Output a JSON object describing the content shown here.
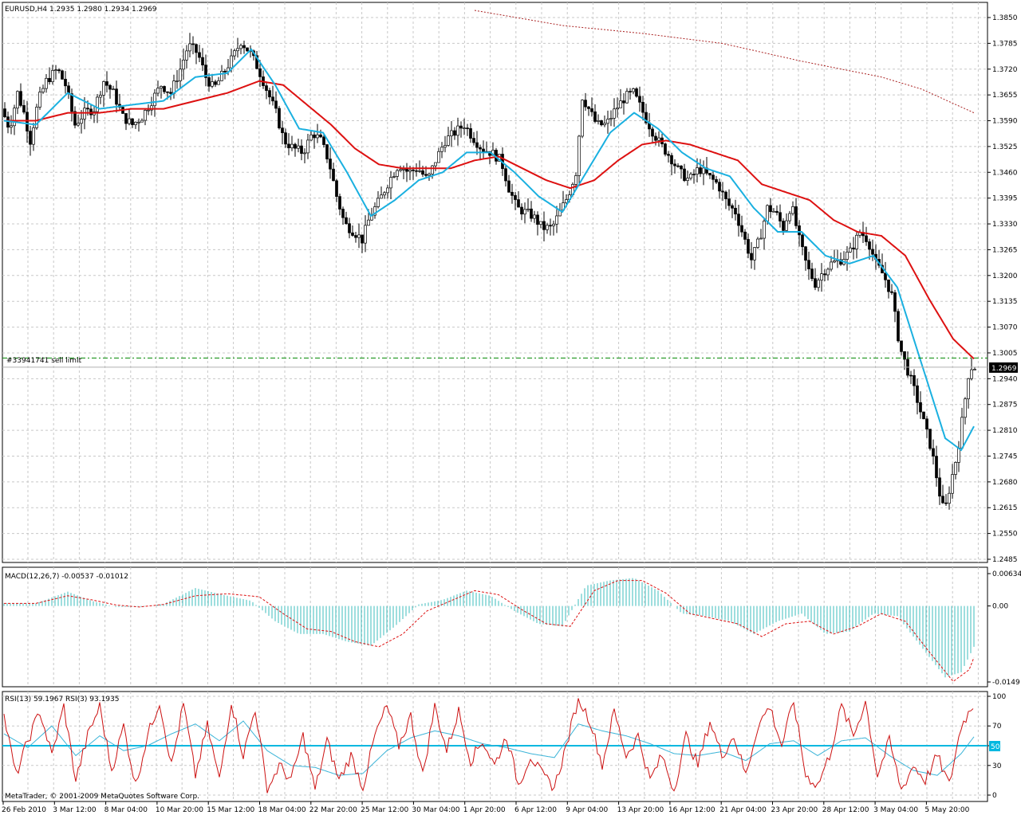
{
  "main": {
    "header": "EURUSD,H4  1.2935 1.2980 1.2934 1.2969",
    "order_label": "#33941741 sell limit",
    "order_price": 1.2992,
    "current_price": 1.2969,
    "current_price_label": "1.2969",
    "price_ticks": [
      "1.3850",
      "1.3785",
      "1.3720",
      "1.3655",
      "1.3590",
      "1.3525",
      "1.3460",
      "1.3395",
      "1.3330",
      "1.3265",
      "1.3200",
      "1.3135",
      "1.3070",
      "1.3005",
      "1.2940",
      "1.2875",
      "1.2810",
      "1.2745",
      "1.2680",
      "1.2615",
      "1.2550",
      "1.2485"
    ]
  },
  "macd": {
    "header": "MACD(12,26,7) -0.00537 -0.01012",
    "ticks": [
      "0.00634",
      "0.00",
      "-0.0149"
    ]
  },
  "rsi": {
    "header": "RSI(13) 59.1967  RSI(3) 93.1935",
    "ticks": [
      "100",
      "70",
      "50",
      "30",
      "0"
    ],
    "level_label": "50"
  },
  "copyright": "MetaTrader, © 2001-2009 MetaQuotes Software Corp.",
  "time_labels": [
    "26 Feb 2010",
    "3 Mar 12:00",
    "8 Mar 04:00",
    "10 Mar 20:00",
    "15 Mar 12:00",
    "18 Mar 04:00",
    "22 Mar 20:00",
    "25 Mar 12:00",
    "30 Mar 04:00",
    "1 Apr 20:00",
    "6 Apr 12:00",
    "9 Apr 04:00",
    "13 Apr 20:00",
    "16 Apr 12:00",
    "21 Apr 04:00",
    "23 Apr 20:00",
    "28 Apr 12:00",
    "3 May 04:00",
    "5 May 20:00"
  ],
  "colors": {
    "ma_fast": "#1ab0e0",
    "ma_slow": "#dd1111",
    "ma_long": "#aa2222",
    "macd_hist": "#3cbcbc",
    "macd_signal": "#dd1111",
    "rsi13": "#3cb4d8",
    "rsi3": "#cc1111",
    "rsi_level": "#00b8e0",
    "candle": "#000000",
    "order_line": "#008800",
    "grid": "#c8c8c8"
  },
  "chart_data": {
    "type": "candlestick",
    "symbol": "EURUSD",
    "timeframe": "H4",
    "price_range": [
      1.2485,
      1.385
    ],
    "price_path": [
      [
        0,
        1.362
      ],
      [
        10,
        1.357
      ],
      [
        20,
        1.366
      ],
      [
        28,
        1.361
      ],
      [
        36,
        1.354
      ],
      [
        46,
        1.364
      ],
      [
        56,
        1.369
      ],
      [
        70,
        1.372
      ],
      [
        80,
        1.368
      ],
      [
        92,
        1.358
      ],
      [
        104,
        1.361
      ],
      [
        116,
        1.362
      ],
      [
        128,
        1.369
      ],
      [
        140,
        1.366
      ],
      [
        152,
        1.36
      ],
      [
        164,
        1.358
      ],
      [
        176,
        1.36
      ],
      [
        188,
        1.364
      ],
      [
        200,
        1.368
      ],
      [
        212,
        1.366
      ],
      [
        224,
        1.372
      ],
      [
        234,
        1.378
      ],
      [
        246,
        1.376
      ],
      [
        256,
        1.37
      ],
      [
        266,
        1.367
      ],
      [
        278,
        1.371
      ],
      [
        290,
        1.375
      ],
      [
        300,
        1.379
      ],
      [
        312,
        1.376
      ],
      [
        322,
        1.372
      ],
      [
        334,
        1.366
      ],
      [
        344,
        1.361
      ],
      [
        354,
        1.354
      ],
      [
        366,
        1.352
      ],
      [
        378,
        1.351
      ],
      [
        390,
        1.356
      ],
      [
        400,
        1.354
      ],
      [
        410,
        1.349
      ],
      [
        420,
        1.34
      ],
      [
        430,
        1.333
      ],
      [
        442,
        1.331
      ],
      [
        452,
        1.329
      ],
      [
        462,
        1.335
      ],
      [
        474,
        1.339
      ],
      [
        486,
        1.344
      ],
      [
        498,
        1.348
      ],
      [
        510,
        1.346
      ],
      [
        522,
        1.347
      ],
      [
        534,
        1.344
      ],
      [
        544,
        1.349
      ],
      [
        556,
        1.354
      ],
      [
        568,
        1.356
      ],
      [
        580,
        1.358
      ],
      [
        590,
        1.355
      ],
      [
        602,
        1.352
      ],
      [
        614,
        1.351
      ],
      [
        626,
        1.349
      ],
      [
        636,
        1.342
      ],
      [
        646,
        1.337
      ],
      [
        656,
        1.336
      ],
      [
        666,
        1.335
      ],
      [
        678,
        1.332
      ],
      [
        690,
        1.332
      ],
      [
        700,
        1.336
      ],
      [
        710,
        1.34
      ],
      [
        720,
        1.346
      ],
      [
        728,
        1.365
      ],
      [
        736,
        1.362
      ],
      [
        746,
        1.358
      ],
      [
        758,
        1.358
      ],
      [
        770,
        1.362
      ],
      [
        782,
        1.365
      ],
      [
        792,
        1.366
      ],
      [
        802,
        1.362
      ],
      [
        814,
        1.357
      ],
      [
        826,
        1.353
      ],
      [
        838,
        1.35
      ],
      [
        850,
        1.346
      ],
      [
        862,
        1.344
      ],
      [
        874,
        1.347
      ],
      [
        886,
        1.345
      ],
      [
        898,
        1.343
      ],
      [
        910,
        1.338
      ],
      [
        920,
        1.336
      ],
      [
        930,
        1.33
      ],
      [
        940,
        1.324
      ],
      [
        950,
        1.329
      ],
      [
        960,
        1.337
      ],
      [
        970,
        1.336
      ],
      [
        980,
        1.332
      ],
      [
        990,
        1.338
      ],
      [
        1000,
        1.329
      ],
      [
        1010,
        1.322
      ],
      [
        1020,
        1.318
      ],
      [
        1030,
        1.321
      ],
      [
        1040,
        1.323
      ],
      [
        1052,
        1.324
      ],
      [
        1064,
        1.326
      ],
      [
        1076,
        1.331
      ],
      [
        1086,
        1.329
      ],
      [
        1096,
        1.323
      ],
      [
        1106,
        1.32
      ],
      [
        1116,
        1.315
      ],
      [
        1126,
        1.302
      ],
      [
        1136,
        1.296
      ],
      [
        1146,
        1.29
      ],
      [
        1156,
        1.283
      ],
      [
        1166,
        1.276
      ],
      [
        1176,
        1.265
      ],
      [
        1182,
        1.26
      ],
      [
        1190,
        1.268
      ],
      [
        1198,
        1.275
      ],
      [
        1206,
        1.286
      ],
      [
        1212,
        1.295
      ],
      [
        1216,
        1.2969
      ]
    ],
    "ma_fast_path": [
      [
        0,
        1.359
      ],
      [
        40,
        1.358
      ],
      [
        80,
        1.366
      ],
      [
        120,
        1.362
      ],
      [
        160,
        1.363
      ],
      [
        200,
        1.364
      ],
      [
        240,
        1.37
      ],
      [
        280,
        1.371
      ],
      [
        310,
        1.377
      ],
      [
        340,
        1.368
      ],
      [
        370,
        1.357
      ],
      [
        400,
        1.356
      ],
      [
        430,
        1.346
      ],
      [
        460,
        1.335
      ],
      [
        490,
        1.339
      ],
      [
        520,
        1.344
      ],
      [
        550,
        1.346
      ],
      [
        580,
        1.351
      ],
      [
        610,
        1.351
      ],
      [
        640,
        1.346
      ],
      [
        670,
        1.34
      ],
      [
        700,
        1.336
      ],
      [
        730,
        1.346
      ],
      [
        760,
        1.356
      ],
      [
        790,
        1.361
      ],
      [
        820,
        1.357
      ],
      [
        850,
        1.351
      ],
      [
        880,
        1.347
      ],
      [
        910,
        1.345
      ],
      [
        940,
        1.337
      ],
      [
        970,
        1.331
      ],
      [
        1000,
        1.331
      ],
      [
        1030,
        1.325
      ],
      [
        1060,
        1.323
      ],
      [
        1090,
        1.325
      ],
      [
        1120,
        1.317
      ],
      [
        1150,
        1.298
      ],
      [
        1180,
        1.279
      ],
      [
        1200,
        1.276
      ],
      [
        1216,
        1.282
      ]
    ],
    "ma_slow_path": [
      [
        0,
        1.359
      ],
      [
        40,
        1.359
      ],
      [
        80,
        1.361
      ],
      [
        120,
        1.361
      ],
      [
        160,
        1.362
      ],
      [
        200,
        1.362
      ],
      [
        240,
        1.364
      ],
      [
        280,
        1.366
      ],
      [
        320,
        1.369
      ],
      [
        350,
        1.368
      ],
      [
        380,
        1.363
      ],
      [
        410,
        1.358
      ],
      [
        440,
        1.352
      ],
      [
        470,
        1.348
      ],
      [
        500,
        1.347
      ],
      [
        530,
        1.347
      ],
      [
        560,
        1.347
      ],
      [
        590,
        1.349
      ],
      [
        620,
        1.35
      ],
      [
        650,
        1.347
      ],
      [
        680,
        1.344
      ],
      [
        710,
        1.342
      ],
      [
        740,
        1.344
      ],
      [
        770,
        1.349
      ],
      [
        800,
        1.353
      ],
      [
        830,
        1.354
      ],
      [
        860,
        1.353
      ],
      [
        890,
        1.351
      ],
      [
        920,
        1.349
      ],
      [
        950,
        1.343
      ],
      [
        980,
        1.341
      ],
      [
        1010,
        1.339
      ],
      [
        1040,
        1.334
      ],
      [
        1070,
        1.331
      ],
      [
        1100,
        1.33
      ],
      [
        1130,
        1.325
      ],
      [
        1160,
        1.314
      ],
      [
        1190,
        1.304
      ],
      [
        1216,
        1.299
      ]
    ],
    "ma_long_path": [
      [
        590,
        1.3868
      ],
      [
        700,
        1.383
      ],
      [
        800,
        1.381
      ],
      [
        900,
        1.3785
      ],
      [
        1000,
        1.374
      ],
      [
        1100,
        1.37
      ],
      [
        1150,
        1.367
      ],
      [
        1216,
        1.361
      ]
    ],
    "macd_range": [
      -0.0149,
      0.00634
    ],
    "macd_hist_path": [
      [
        0,
        0.0005
      ],
      [
        40,
        0.0005
      ],
      [
        80,
        0.0028
      ],
      [
        110,
        0.001
      ],
      [
        140,
        -0.0002
      ],
      [
        170,
        -0.0002
      ],
      [
        200,
        0.0004
      ],
      [
        240,
        0.0035
      ],
      [
        280,
        0.002
      ],
      [
        310,
        0.001
      ],
      [
        340,
        -0.003
      ],
      [
        370,
        -0.0055
      ],
      [
        400,
        -0.0055
      ],
      [
        430,
        -0.007
      ],
      [
        460,
        -0.0078
      ],
      [
        490,
        -0.004
      ],
      [
        520,
        0.0003
      ],
      [
        550,
        0.0012
      ],
      [
        580,
        0.003
      ],
      [
        610,
        0.002
      ],
      [
        640,
        -0.001
      ],
      [
        670,
        -0.0035
      ],
      [
        700,
        -0.004
      ],
      [
        730,
        0.004
      ],
      [
        760,
        0.005
      ],
      [
        790,
        0.0055
      ],
      [
        820,
        0.003
      ],
      [
        850,
        -0.0015
      ],
      [
        880,
        -0.002
      ],
      [
        910,
        -0.003
      ],
      [
        940,
        -0.0055
      ],
      [
        970,
        -0.003
      ],
      [
        1000,
        -0.0015
      ],
      [
        1030,
        -0.0055
      ],
      [
        1060,
        -0.005
      ],
      [
        1090,
        -0.0015
      ],
      [
        1120,
        -0.002
      ],
      [
        1150,
        -0.008
      ],
      [
        1180,
        -0.014
      ],
      [
        1200,
        -0.013
      ],
      [
        1216,
        -0.008
      ]
    ],
    "macd_signal_path": [
      [
        0,
        0.0005
      ],
      [
        40,
        0.0005
      ],
      [
        80,
        0.002
      ],
      [
        110,
        0.0012
      ],
      [
        140,
        0.0002
      ],
      [
        170,
        -0.0002
      ],
      [
        200,
        0.0003
      ],
      [
        240,
        0.002
      ],
      [
        280,
        0.0024
      ],
      [
        320,
        0.0018
      ],
      [
        350,
        -0.0015
      ],
      [
        380,
        -0.0045
      ],
      [
        410,
        -0.005
      ],
      [
        440,
        -0.007
      ],
      [
        470,
        -0.008
      ],
      [
        500,
        -0.0055
      ],
      [
        530,
        -0.001
      ],
      [
        560,
        0.001
      ],
      [
        590,
        0.003
      ],
      [
        620,
        0.0022
      ],
      [
        650,
        -0.0008
      ],
      [
        680,
        -0.0035
      ],
      [
        710,
        -0.004
      ],
      [
        740,
        0.003
      ],
      [
        770,
        0.005
      ],
      [
        800,
        0.005
      ],
      [
        830,
        0.0025
      ],
      [
        860,
        -0.0015
      ],
      [
        890,
        -0.0025
      ],
      [
        920,
        -0.0035
      ],
      [
        950,
        -0.006
      ],
      [
        980,
        -0.0035
      ],
      [
        1010,
        -0.003
      ],
      [
        1040,
        -0.0055
      ],
      [
        1070,
        -0.004
      ],
      [
        1100,
        -0.0015
      ],
      [
        1130,
        -0.003
      ],
      [
        1160,
        -0.009
      ],
      [
        1190,
        -0.0148
      ],
      [
        1210,
        -0.0125
      ],
      [
        1216,
        -0.0101
      ]
    ],
    "rsi_range": [
      0,
      100
    ],
    "rsi13_path": [
      [
        0,
        62
      ],
      [
        30,
        48
      ],
      [
        60,
        70
      ],
      [
        90,
        40
      ],
      [
        120,
        60
      ],
      [
        150,
        45
      ],
      [
        180,
        50
      ],
      [
        210,
        62
      ],
      [
        240,
        72
      ],
      [
        270,
        55
      ],
      [
        300,
        75
      ],
      [
        330,
        45
      ],
      [
        360,
        30
      ],
      [
        390,
        28
      ],
      [
        420,
        20
      ],
      [
        450,
        22
      ],
      [
        480,
        45
      ],
      [
        510,
        58
      ],
      [
        540,
        65
      ],
      [
        570,
        60
      ],
      [
        600,
        52
      ],
      [
        630,
        48
      ],
      [
        660,
        42
      ],
      [
        690,
        38
      ],
      [
        720,
        72
      ],
      [
        750,
        65
      ],
      [
        780,
        60
      ],
      [
        810,
        52
      ],
      [
        840,
        42
      ],
      [
        870,
        40
      ],
      [
        900,
        44
      ],
      [
        930,
        35
      ],
      [
        960,
        52
      ],
      [
        990,
        55
      ],
      [
        1020,
        40
      ],
      [
        1050,
        55
      ],
      [
        1080,
        58
      ],
      [
        1110,
        40
      ],
      [
        1140,
        25
      ],
      [
        1170,
        20
      ],
      [
        1200,
        42
      ],
      [
        1216,
        59
      ]
    ],
    "rsi3_path": [
      [
        0,
        80
      ],
      [
        15,
        20
      ],
      [
        30,
        55
      ],
      [
        45,
        85
      ],
      [
        60,
        40
      ],
      [
        75,
        90
      ],
      [
        90,
        15
      ],
      [
        105,
        60
      ],
      [
        120,
        90
      ],
      [
        135,
        25
      ],
      [
        150,
        70
      ],
      [
        165,
        10
      ],
      [
        180,
        60
      ],
      [
        195,
        95
      ],
      [
        210,
        30
      ],
      [
        225,
        92
      ],
      [
        240,
        20
      ],
      [
        255,
        70
      ],
      [
        270,
        15
      ],
      [
        285,
        95
      ],
      [
        300,
        40
      ],
      [
        315,
        88
      ],
      [
        330,
        5
      ],
      [
        345,
        30
      ],
      [
        360,
        15
      ],
      [
        375,
        60
      ],
      [
        390,
        5
      ],
      [
        405,
        55
      ],
      [
        420,
        15
      ],
      [
        435,
        40
      ],
      [
        450,
        8
      ],
      [
        465,
        60
      ],
      [
        480,
        90
      ],
      [
        495,
        50
      ],
      [
        510,
        80
      ],
      [
        525,
        20
      ],
      [
        540,
        90
      ],
      [
        555,
        45
      ],
      [
        570,
        85
      ],
      [
        585,
        35
      ],
      [
        600,
        55
      ],
      [
        615,
        30
      ],
      [
        630,
        60
      ],
      [
        645,
        10
      ],
      [
        660,
        40
      ],
      [
        675,
        20
      ],
      [
        690,
        8
      ],
      [
        705,
        50
      ],
      [
        720,
        98
      ],
      [
        735,
        75
      ],
      [
        750,
        30
      ],
      [
        765,
        85
      ],
      [
        780,
        40
      ],
      [
        795,
        60
      ],
      [
        810,
        15
      ],
      [
        825,
        40
      ],
      [
        840,
        5
      ],
      [
        855,
        60
      ],
      [
        870,
        30
      ],
      [
        885,
        75
      ],
      [
        900,
        40
      ],
      [
        915,
        60
      ],
      [
        930,
        20
      ],
      [
        945,
        70
      ],
      [
        960,
        90
      ],
      [
        975,
        50
      ],
      [
        990,
        95
      ],
      [
        1005,
        20
      ],
      [
        1020,
        10
      ],
      [
        1035,
        40
      ],
      [
        1050,
        90
      ],
      [
        1065,
        60
      ],
      [
        1080,
        95
      ],
      [
        1095,
        20
      ],
      [
        1110,
        55
      ],
      [
        1125,
        5
      ],
      [
        1140,
        30
      ],
      [
        1155,
        15
      ],
      [
        1170,
        40
      ],
      [
        1185,
        10
      ],
      [
        1200,
        70
      ],
      [
        1216,
        93
      ]
    ]
  }
}
